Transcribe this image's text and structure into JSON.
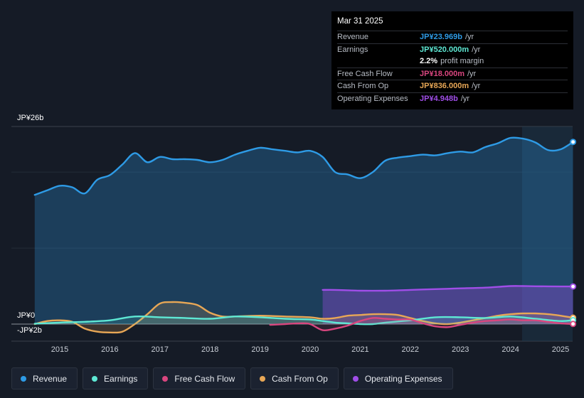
{
  "tooltip": {
    "date": "Mar 31 2025",
    "rows": [
      {
        "label": "Revenue",
        "value": "JP¥23.969b",
        "unit": "/yr",
        "color": "#2e9be6"
      },
      {
        "label": "Earnings",
        "value": "JP¥520.000m",
        "unit": "/yr",
        "color": "#5ee8d4"
      },
      {
        "label": "",
        "value": "2.2%",
        "unit": "profit margin",
        "color": "#ffffff"
      },
      {
        "label": "Free Cash Flow",
        "value": "JP¥18.000m",
        "unit": "/yr",
        "color": "#d9467f"
      },
      {
        "label": "Cash From Op",
        "value": "JP¥836.000m",
        "unit": "/yr",
        "color": "#e8a756"
      },
      {
        "label": "Operating Expenses",
        "value": "JP¥4.948b",
        "unit": "/yr",
        "color": "#a04ee8"
      }
    ]
  },
  "axis": {
    "y_top_label": "JP¥26b",
    "y_zero_label": "JP¥0",
    "y_bottom_label": "-JP¥2b"
  },
  "legend": [
    {
      "label": "Revenue",
      "color": "#2e9be6"
    },
    {
      "label": "Earnings",
      "color": "#5ee8d4"
    },
    {
      "label": "Free Cash Flow",
      "color": "#d9467f"
    },
    {
      "label": "Cash From Op",
      "color": "#e8a756"
    },
    {
      "label": "Operating Expenses",
      "color": "#a04ee8"
    }
  ],
  "chart_data": {
    "type": "line",
    "ylim": [
      -2,
      26
    ],
    "x_ticks": [
      "2015",
      "2016",
      "2017",
      "2018",
      "2019",
      "2020",
      "2021",
      "2022",
      "2023",
      "2024",
      "2025"
    ],
    "series": [
      {
        "name": "Revenue",
        "color": "#2e9be6",
        "x": [
          2014.5,
          2014.75,
          2015.0,
          2015.25,
          2015.5,
          2015.75,
          2016.0,
          2016.25,
          2016.5,
          2016.75,
          2017.0,
          2017.25,
          2017.5,
          2017.75,
          2018.0,
          2018.25,
          2018.5,
          2018.75,
          2019.0,
          2019.25,
          2019.5,
          2019.75,
          2020.0,
          2020.25,
          2020.5,
          2020.75,
          2021.0,
          2021.25,
          2021.5,
          2021.75,
          2022.0,
          2022.25,
          2022.5,
          2022.75,
          2023.0,
          2023.25,
          2023.5,
          2023.75,
          2024.0,
          2024.25,
          2024.5,
          2024.75,
          2025.0,
          2025.25
        ],
        "values": [
          17.0,
          17.6,
          18.2,
          18.0,
          17.2,
          19.0,
          19.6,
          21.0,
          22.5,
          21.3,
          22.0,
          21.7,
          21.7,
          21.6,
          21.3,
          21.6,
          22.3,
          22.8,
          23.2,
          23.0,
          22.8,
          22.6,
          22.8,
          22.0,
          20.0,
          19.7,
          19.2,
          20.0,
          21.5,
          21.9,
          22.1,
          22.3,
          22.2,
          22.5,
          22.7,
          22.6,
          23.3,
          23.8,
          24.5,
          24.4,
          23.9,
          22.9,
          23.0,
          23.97
        ]
      },
      {
        "name": "Earnings",
        "color": "#5ee8d4",
        "x": [
          2014.5,
          2015.0,
          2015.5,
          2016.0,
          2016.5,
          2017.0,
          2017.5,
          2018.0,
          2018.5,
          2019.0,
          2019.5,
          2020.0,
          2020.25,
          2020.5,
          2020.75,
          2021.0,
          2021.25,
          2021.5,
          2022.0,
          2022.5,
          2023.0,
          2023.5,
          2024.0,
          2024.5,
          2025.0,
          2025.25
        ],
        "values": [
          0.05,
          0.2,
          0.3,
          0.5,
          1.0,
          0.9,
          0.8,
          0.7,
          1.0,
          0.9,
          0.7,
          0.6,
          0.4,
          0.2,
          0.1,
          0.0,
          0.0,
          0.2,
          0.5,
          0.9,
          0.9,
          0.8,
          1.0,
          0.7,
          0.4,
          0.52
        ]
      },
      {
        "name": "Free Cash Flow",
        "color": "#d9467f",
        "x": [
          2019.2,
          2019.5,
          2019.8,
          2020.0,
          2020.25,
          2020.5,
          2020.75,
          2021.0,
          2021.25,
          2021.5,
          2021.75,
          2022.0,
          2022.25,
          2022.5,
          2022.75,
          2023.0,
          2023.25,
          2023.5,
          2023.75,
          2024.0,
          2024.25,
          2024.5,
          2024.75,
          2025.0,
          2025.25
        ],
        "values": [
          -0.1,
          0.0,
          0.1,
          0.0,
          -0.8,
          -0.6,
          -0.2,
          0.4,
          0.8,
          0.7,
          0.6,
          0.6,
          0.1,
          -0.3,
          -0.4,
          -0.1,
          0.2,
          0.4,
          0.5,
          0.6,
          0.5,
          0.5,
          0.3,
          0.1,
          0.018
        ]
      },
      {
        "name": "Cash From Op",
        "color": "#e8a756",
        "x": [
          2014.5,
          2014.75,
          2015.0,
          2015.25,
          2015.5,
          2015.75,
          2016.0,
          2016.25,
          2016.5,
          2016.75,
          2017.0,
          2017.25,
          2017.5,
          2017.75,
          2018.0,
          2018.25,
          2018.5,
          2019.0,
          2019.5,
          2020.0,
          2020.25,
          2020.5,
          2020.75,
          2021.0,
          2021.25,
          2021.5,
          2021.75,
          2022.0,
          2022.25,
          2022.5,
          2022.75,
          2023.0,
          2023.25,
          2023.5,
          2023.75,
          2024.0,
          2024.25,
          2024.5,
          2024.75,
          2025.0,
          2025.25
        ],
        "values": [
          0.0,
          0.4,
          0.5,
          0.3,
          -0.6,
          -1.0,
          -1.1,
          -1.0,
          0.0,
          1.3,
          2.7,
          2.9,
          2.8,
          2.5,
          1.5,
          1.0,
          1.0,
          1.1,
          1.0,
          0.9,
          0.7,
          0.8,
          1.1,
          1.2,
          1.3,
          1.3,
          1.2,
          0.8,
          0.4,
          0.1,
          0.0,
          0.2,
          0.5,
          0.8,
          1.1,
          1.3,
          1.4,
          1.4,
          1.3,
          1.1,
          0.836
        ]
      },
      {
        "name": "Operating Expenses",
        "color": "#a04ee8",
        "x": [
          2020.25,
          2020.5,
          2021.0,
          2021.5,
          2022.0,
          2022.5,
          2023.0,
          2023.5,
          2024.0,
          2024.25,
          2024.5,
          2025.0,
          2025.25
        ],
        "values": [
          4.5,
          4.5,
          4.4,
          4.4,
          4.5,
          4.6,
          4.7,
          4.8,
          5.0,
          5.0,
          4.98,
          4.95,
          4.948
        ]
      }
    ]
  }
}
